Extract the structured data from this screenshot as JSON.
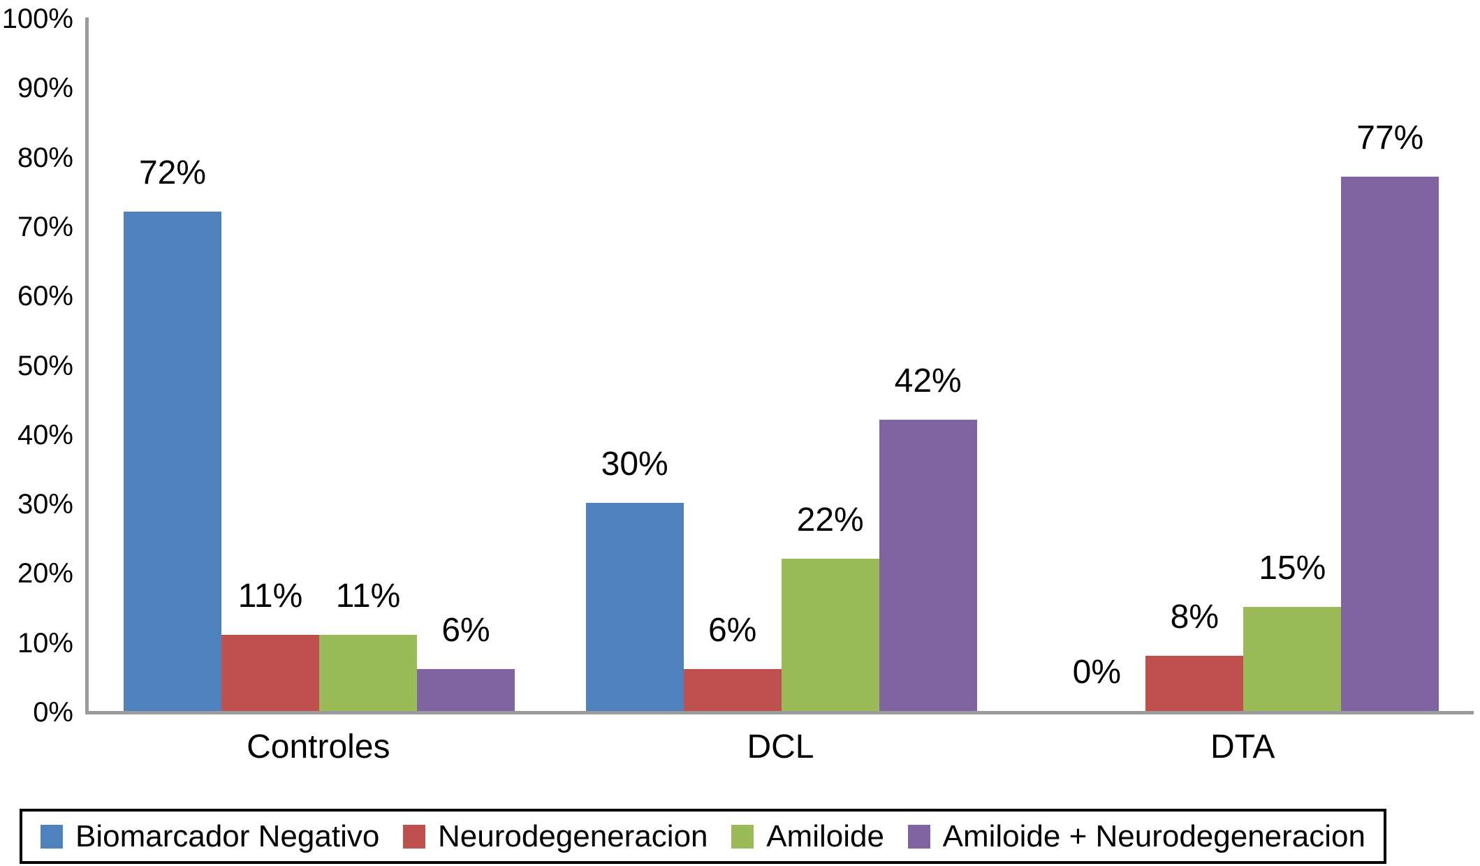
{
  "chart_data": {
    "type": "bar",
    "title": "",
    "xlabel": "",
    "ylabel": "",
    "grid": false,
    "legend_position": "bottom",
    "background_color": "#ffffff",
    "axis_color": "#9b9b9b",
    "text_color": "#000000",
    "categories": [
      "Controles",
      "DCL",
      "DTA"
    ],
    "series": [
      {
        "name": "Biomarcador Negativo",
        "color": "#4f81bd",
        "values": [
          72,
          30,
          0
        ],
        "value_labels": [
          "72%",
          "30%",
          "0%"
        ]
      },
      {
        "name": "Neurodegeneracion",
        "color": "#c0504d",
        "values": [
          11,
          6,
          8
        ],
        "value_labels": [
          "11%",
          "6%",
          "8%"
        ]
      },
      {
        "name": "Amiloide",
        "color": "#9bbb59",
        "values": [
          11,
          22,
          15
        ],
        "value_labels": [
          "11%",
          "22%",
          "15%"
        ]
      },
      {
        "name": "Amiloide + Neurodegeneracion",
        "color": "#8064a2",
        "values": [
          6,
          42,
          77
        ],
        "value_labels": [
          "6%",
          "42%",
          "77%"
        ]
      }
    ],
    "y_axis": {
      "min": 0,
      "max": 100,
      "step": 10,
      "tick_labels": [
        "0%",
        "10%",
        "20%",
        "30%",
        "40%",
        "50%",
        "60%",
        "70%",
        "80%",
        "90%",
        "100%"
      ]
    }
  }
}
